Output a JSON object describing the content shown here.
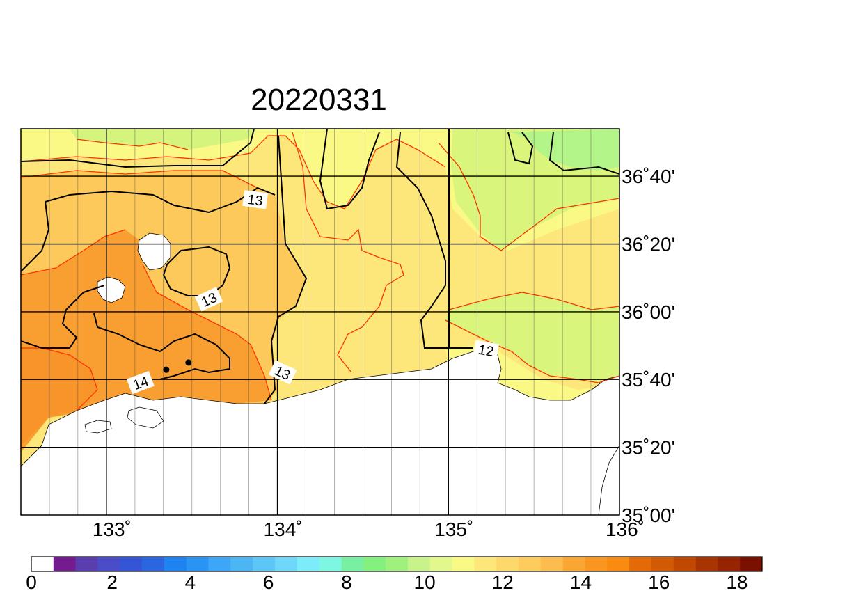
{
  "title": "20220331",
  "map": {
    "lon_range": [
      132.5,
      136.0
    ],
    "lat_range": [
      35.0,
      36.9
    ],
    "lon_ticks": [
      {
        "value": 133,
        "label": "133˚"
      },
      {
        "value": 134,
        "label": "134˚"
      },
      {
        "value": 135,
        "label": "135˚"
      },
      {
        "value": 136,
        "label": "136˚"
      }
    ],
    "lat_ticks": [
      {
        "value": 35.0,
        "label": "35˚00'"
      },
      {
        "value": 35.333,
        "label": "35˚20'"
      },
      {
        "value": 35.667,
        "label": "35˚40'"
      },
      {
        "value": 36.0,
        "label": "36˚00'"
      },
      {
        "value": 36.333,
        "label": "36˚20'"
      },
      {
        "value": 36.667,
        "label": "36˚40'"
      }
    ],
    "major_grid_lon": [
      133,
      134,
      135
    ],
    "major_grid_lat": [
      35.333,
      35.667,
      36.0,
      36.333,
      36.667
    ],
    "minor_grid_lon": [
      132.667,
      132.833,
      133.167,
      133.333,
      133.5,
      133.667,
      133.833,
      134.167,
      134.333,
      134.5,
      134.667,
      134.833,
      135.167,
      135.333,
      135.5,
      135.667,
      135.833
    ],
    "contour_labels": [
      {
        "text": "13",
        "lon": 133.87,
        "lat": 36.55,
        "rotate": 8
      },
      {
        "text": "13",
        "lon": 133.6,
        "lat": 36.06,
        "rotate": -25
      },
      {
        "text": "13",
        "lon": 134.03,
        "lat": 35.7,
        "rotate": 25
      },
      {
        "text": "14",
        "lon": 133.2,
        "lat": 35.65,
        "rotate": -20
      },
      {
        "text": "12",
        "lon": 135.22,
        "lat": 35.81,
        "rotate": 10
      }
    ],
    "markers": [
      {
        "name": "station-marker-1",
        "lon": 133.35,
        "lat": 35.715
      },
      {
        "name": "station-marker-2",
        "lon": 133.48,
        "lat": 35.75
      }
    ]
  },
  "colorbar": {
    "tick_labels": [
      "0",
      "2",
      "4",
      "6",
      "8",
      "10",
      "12",
      "14",
      "16",
      "18"
    ],
    "colors": [
      "#ffffff",
      "#741c8f",
      "#5a3eb0",
      "#4a4cc8",
      "#3355d6",
      "#2a66e0",
      "#1e82f0",
      "#2a94f5",
      "#3ea6f7",
      "#4cb6f5",
      "#5cc6f7",
      "#6fd8fa",
      "#7cecfa",
      "#7ef7e2",
      "#78f0a2",
      "#84f07e",
      "#a0f07e",
      "#c8f38a",
      "#e2f78c",
      "#fbf985",
      "#fde77a",
      "#fdd86a",
      "#fdcc5c",
      "#fcbd4e",
      "#f9a632",
      "#f9961f",
      "#f98b10",
      "#e36a07",
      "#d25a05",
      "#c04800",
      "#a83500",
      "#962400",
      "#7a1000"
    ]
  },
  "legend_colors": {
    "field_11_5": "#f7f57a",
    "field_12": "#fde77a",
    "field_12_5": "#fdd25e",
    "field_13": "#fccf5b",
    "field_13_5": "#fcb64b",
    "field_14": "#f99e30",
    "field_11": "#d9f57c",
    "field_10_5": "#b4f58a",
    "land": "#ffffff",
    "contour_black": "#000000",
    "contour_red": "#ff3300"
  }
}
